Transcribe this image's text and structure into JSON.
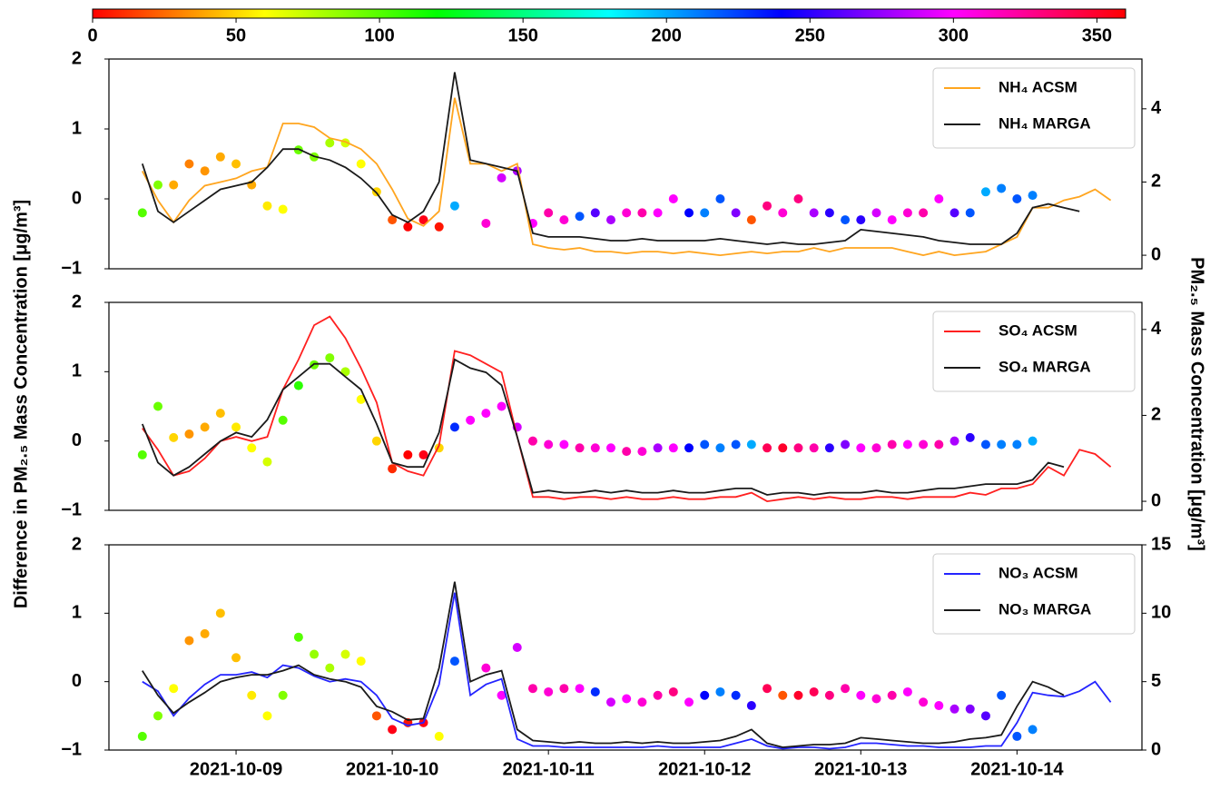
{
  "colorbar": {
    "colormap": "hsv",
    "clim": [
      0,
      360
    ],
    "ticks": [
      0,
      50,
      100,
      150,
      200,
      250,
      300,
      350
    ]
  },
  "y_label": "Difference in PM₂.₅ Mass Concentration  [μg/m³]",
  "y2_label": "PM₂.₅ Mass Concentration [μg/m³]",
  "x": [
    8.4,
    8.5,
    8.6,
    8.7,
    8.8,
    8.9,
    9.0,
    9.1,
    9.2,
    9.3,
    9.4,
    9.5,
    9.6,
    9.7,
    9.8,
    9.9,
    10.0,
    10.1,
    10.2,
    10.3,
    10.4,
    10.5,
    10.6,
    10.7,
    10.8,
    10.9,
    11.0,
    11.1,
    11.2,
    11.3,
    11.4,
    11.5,
    11.6,
    11.7,
    11.8,
    11.9,
    12.0,
    12.1,
    12.2,
    12.3,
    12.4,
    12.5,
    12.6,
    12.7,
    12.8,
    12.9,
    13.0,
    13.1,
    13.2,
    13.3,
    13.4,
    13.5,
    13.6,
    13.7,
    13.8,
    13.9,
    14.0,
    14.1,
    14.2,
    14.3,
    14.4,
    14.5,
    14.6
  ],
  "xlim": [
    8.186,
    14.8
  ],
  "chart_data": [
    {
      "type": "line",
      "ylim": [
        -1,
        2
      ],
      "yticks": [
        {
          "value": -1,
          "label": "−1"
        },
        0,
        1,
        2
      ],
      "y2lim": [
        -0.37,
        5.36
      ],
      "y2ticks": [
        0,
        2,
        4
      ],
      "series": [
        {
          "type": "scatter",
          "values": [
            -0.2,
            0.2,
            0.2,
            0.5,
            0.4,
            0.6,
            0.5,
            0.2,
            -0.1,
            -0.15,
            0.7,
            0.6,
            0.8,
            0.8,
            0.5,
            0.1,
            -0.3,
            -0.4,
            -0.3,
            -0.4,
            -0.1,
            null,
            -0.35,
            0.3,
            0.4,
            -0.35,
            -0.2,
            -0.3,
            -0.25,
            -0.2,
            -0.3,
            -0.2,
            -0.2,
            -0.2,
            0.0,
            -0.2,
            -0.2,
            0.0,
            -0.2,
            -0.3,
            -0.1,
            -0.2,
            0.0,
            -0.2,
            -0.2,
            -0.3,
            -0.3,
            -0.2,
            -0.3,
            -0.2,
            -0.2,
            0.0,
            -0.2,
            -0.2,
            0.1,
            0.15,
            0.0,
            0.05,
            null,
            null,
            null,
            null,
            null
          ],
          "color_values": [
            100,
            90,
            40,
            30,
            35,
            40,
            45,
            40,
            55,
            60,
            95,
            90,
            80,
            70,
            60,
            50,
            20,
            0,
            355,
            5,
            200,
            null,
            310,
            290,
            280,
            300,
            320,
            310,
            220,
            260,
            280,
            310,
            320,
            300,
            300,
            240,
            210,
            220,
            270,
            20,
            330,
            310,
            330,
            280,
            250,
            220,
            250,
            290,
            300,
            310,
            320,
            300,
            260,
            220,
            200,
            210,
            220,
            210,
            null,
            null,
            null,
            null,
            null
          ]
        },
        {
          "name": "NH₄ ACSM",
          "color": "#ffa51f",
          "axis": "y2",
          "values": [
            2.3,
            1.5,
            0.9,
            1.5,
            1.9,
            2.0,
            2.1,
            2.3,
            2.4,
            3.6,
            3.6,
            3.5,
            3.2,
            3.1,
            2.9,
            2.5,
            1.8,
            1.0,
            0.8,
            1.2,
            4.3,
            2.5,
            2.5,
            2.3,
            2.5,
            0.3,
            0.2,
            0.15,
            0.2,
            0.1,
            0.1,
            0.05,
            0.1,
            0.1,
            0.05,
            0.1,
            0.05,
            0.0,
            0.05,
            0.1,
            0.05,
            0.1,
            0.1,
            0.2,
            0.1,
            0.2,
            0.2,
            0.2,
            0.2,
            0.1,
            0.0,
            0.1,
            0.0,
            0.05,
            0.1,
            0.3,
            0.5,
            1.3,
            1.3,
            1.5,
            1.6,
            1.8,
            1.5
          ]
        },
        {
          "name": "NH₄ MARGA",
          "color": "#1a1a1a",
          "axis": "y2",
          "values": [
            2.5,
            1.2,
            0.9,
            1.2,
            1.5,
            1.8,
            1.9,
            2.0,
            2.4,
            2.9,
            2.9,
            2.7,
            2.6,
            2.4,
            2.1,
            1.7,
            1.1,
            0.9,
            1.2,
            2.0,
            5.0,
            2.6,
            2.5,
            2.4,
            2.3,
            0.6,
            0.5,
            0.5,
            0.5,
            0.45,
            0.4,
            0.4,
            0.45,
            0.4,
            0.4,
            0.4,
            0.4,
            0.45,
            0.4,
            0.35,
            0.3,
            0.35,
            0.3,
            0.3,
            0.35,
            0.4,
            0.7,
            0.65,
            0.6,
            0.55,
            0.5,
            0.4,
            0.35,
            0.3,
            0.3,
            0.3,
            0.6,
            1.3,
            1.4,
            1.3,
            1.2,
            null,
            null
          ]
        }
      ]
    },
    {
      "type": "line",
      "ylim": [
        -1,
        2
      ],
      "yticks": [
        {
          "value": -1,
          "label": "−1"
        },
        0,
        1,
        2
      ],
      "y2lim": [
        -0.21,
        4.63
      ],
      "y2ticks": [
        0,
        2,
        4
      ],
      "series": [
        {
          "type": "scatter",
          "values": [
            -0.2,
            0.5,
            0.05,
            0.1,
            0.2,
            0.4,
            0.2,
            -0.1,
            -0.3,
            0.3,
            0.8,
            1.1,
            1.2,
            1.0,
            0.6,
            0.0,
            -0.4,
            -0.2,
            -0.2,
            -0.1,
            0.2,
            0.3,
            0.4,
            0.5,
            0.2,
            0.0,
            -0.05,
            -0.05,
            -0.1,
            -0.1,
            -0.1,
            -0.15,
            -0.15,
            -0.1,
            -0.1,
            -0.1,
            -0.05,
            -0.1,
            -0.05,
            -0.05,
            -0.1,
            -0.1,
            -0.1,
            -0.1,
            -0.1,
            -0.05,
            -0.1,
            -0.1,
            -0.05,
            -0.05,
            -0.05,
            -0.05,
            0.0,
            0.05,
            -0.05,
            -0.05,
            -0.05,
            0.0,
            null,
            null,
            null,
            null,
            null
          ],
          "color_values": [
            100,
            95,
            50,
            35,
            40,
            45,
            55,
            60,
            70,
            100,
            110,
            95,
            90,
            80,
            60,
            50,
            10,
            0,
            355,
            50,
            230,
            300,
            300,
            300,
            290,
            320,
            310,
            300,
            320,
            310,
            300,
            320,
            310,
            280,
            300,
            240,
            220,
            210,
            220,
            200,
            340,
            350,
            330,
            320,
            250,
            270,
            300,
            310,
            320,
            300,
            310,
            320,
            280,
            250,
            220,
            210,
            210,
            200,
            null,
            null,
            null,
            null,
            null
          ]
        },
        {
          "name": "SO₄ ACSM",
          "color": "#ff2020",
          "axis": "y2",
          "values": [
            1.7,
            1.2,
            0.6,
            0.7,
            1.0,
            1.4,
            1.5,
            1.4,
            1.5,
            2.6,
            3.3,
            4.1,
            4.3,
            3.8,
            3.1,
            2.3,
            0.9,
            0.7,
            0.6,
            1.3,
            3.5,
            3.4,
            3.2,
            3.0,
            1.5,
            0.1,
            0.1,
            0.05,
            0.1,
            0.1,
            0.05,
            0.1,
            0.05,
            0.05,
            0.1,
            0.05,
            0.05,
            0.1,
            0.1,
            0.2,
            0.0,
            0.05,
            0.1,
            0.05,
            0.1,
            0.05,
            0.05,
            0.1,
            0.1,
            0.05,
            0.1,
            0.1,
            0.1,
            0.2,
            0.15,
            0.3,
            0.3,
            0.4,
            0.8,
            0.6,
            1.2,
            1.1,
            0.8
          ]
        },
        {
          "name": "SO₄ MARGA",
          "color": "#1a1a1a",
          "axis": "y2",
          "values": [
            1.8,
            0.9,
            0.6,
            0.8,
            1.1,
            1.4,
            1.6,
            1.5,
            1.9,
            2.6,
            2.9,
            3.2,
            3.2,
            2.9,
            2.6,
            1.8,
            0.9,
            0.8,
            0.8,
            1.6,
            3.3,
            3.1,
            3.0,
            2.7,
            1.5,
            0.2,
            0.25,
            0.2,
            0.2,
            0.25,
            0.2,
            0.25,
            0.2,
            0.2,
            0.25,
            0.2,
            0.2,
            0.25,
            0.3,
            0.3,
            0.15,
            0.2,
            0.2,
            0.15,
            0.2,
            0.2,
            0.2,
            0.25,
            0.2,
            0.2,
            0.25,
            0.3,
            0.3,
            0.35,
            0.4,
            0.4,
            0.4,
            0.5,
            0.9,
            0.8,
            null,
            null,
            null
          ]
        }
      ]
    },
    {
      "type": "line",
      "ylim": [
        -1,
        2
      ],
      "yticks": [
        {
          "value": -1,
          "label": "−1"
        },
        0,
        1,
        2
      ],
      "y2lim": [
        0,
        15
      ],
      "y2ticks": [
        0,
        5,
        10,
        15
      ],
      "xticks": [
        {
          "value": 9,
          "label": "2021-10-09"
        },
        {
          "value": 10,
          "label": "2021-10-10"
        },
        {
          "value": 11,
          "label": "2021-10-11"
        },
        {
          "value": 12,
          "label": "2021-10-12"
        },
        {
          "value": 13,
          "label": "2021-10-13"
        },
        {
          "value": 14,
          "label": "2021-10-14"
        }
      ],
      "series": [
        {
          "type": "scatter",
          "values": [
            -0.8,
            -0.5,
            -0.1,
            0.6,
            0.7,
            1.0,
            0.35,
            -0.2,
            -0.5,
            -0.2,
            0.65,
            0.4,
            0.2,
            0.4,
            0.3,
            -0.5,
            -0.7,
            -0.6,
            -0.6,
            -0.8,
            0.3,
            null,
            0.2,
            -0.2,
            0.5,
            -0.1,
            -0.15,
            -0.1,
            -0.1,
            -0.15,
            -0.3,
            -0.25,
            -0.3,
            -0.2,
            -0.15,
            -0.3,
            -0.2,
            -0.15,
            -0.2,
            -0.35,
            -0.1,
            -0.2,
            -0.2,
            -0.15,
            -0.2,
            -0.1,
            -0.2,
            -0.25,
            -0.2,
            -0.15,
            -0.3,
            -0.35,
            -0.4,
            -0.4,
            -0.5,
            -0.2,
            -0.8,
            -0.7,
            null,
            null,
            null,
            null,
            null
          ],
          "color_values": [
            100,
            90,
            60,
            35,
            40,
            45,
            45,
            55,
            60,
            90,
            100,
            85,
            80,
            70,
            60,
            20,
            355,
            5,
            355,
            60,
            220,
            null,
            310,
            300,
            290,
            320,
            310,
            320,
            300,
            230,
            290,
            300,
            310,
            320,
            330,
            300,
            240,
            210,
            230,
            250,
            340,
            20,
            350,
            340,
            330,
            320,
            300,
            310,
            320,
            300,
            310,
            300,
            280,
            270,
            260,
            220,
            220,
            210,
            null,
            null,
            null,
            null,
            null
          ]
        },
        {
          "name": "NO₃  ACSM",
          "color": "#2424ff",
          "axis": "y2",
          "values": [
            5.0,
            4.3,
            2.5,
            3.8,
            4.8,
            5.5,
            5.5,
            5.7,
            5.3,
            6.2,
            6.0,
            5.4,
            5.0,
            5.2,
            5.0,
            4.0,
            2.3,
            1.8,
            2.0,
            4.8,
            11.5,
            4.0,
            4.8,
            5.2,
            0.8,
            0.3,
            0.3,
            0.2,
            0.2,
            0.2,
            0.2,
            0.2,
            0.2,
            0.3,
            0.2,
            0.2,
            0.2,
            0.2,
            0.5,
            0.8,
            0.3,
            0.1,
            0.2,
            0.2,
            0.1,
            0.2,
            0.5,
            0.5,
            0.4,
            0.3,
            0.3,
            0.2,
            0.2,
            0.2,
            0.3,
            0.3,
            2.0,
            4.2,
            4.0,
            3.9,
            4.3,
            5.0,
            3.5
          ]
        },
        {
          "name": "NO₃ MARGA",
          "color": "#1a1a1a",
          "axis": "y2",
          "values": [
            5.8,
            4.0,
            2.7,
            3.5,
            4.2,
            5.0,
            5.3,
            5.5,
            5.5,
            5.8,
            6.2,
            5.5,
            5.2,
            5.0,
            4.6,
            3.2,
            2.8,
            2.2,
            2.3,
            6.0,
            12.3,
            5.0,
            5.5,
            5.8,
            1.5,
            0.7,
            0.6,
            0.5,
            0.6,
            0.5,
            0.5,
            0.6,
            0.5,
            0.6,
            0.5,
            0.5,
            0.6,
            0.7,
            1.0,
            1.5,
            0.5,
            0.2,
            0.3,
            0.4,
            0.4,
            0.5,
            0.9,
            0.8,
            0.7,
            0.6,
            0.5,
            0.5,
            0.6,
            0.8,
            0.9,
            1.1,
            3.2,
            5.0,
            4.6,
            4.0,
            null,
            null,
            null
          ]
        }
      ]
    }
  ]
}
